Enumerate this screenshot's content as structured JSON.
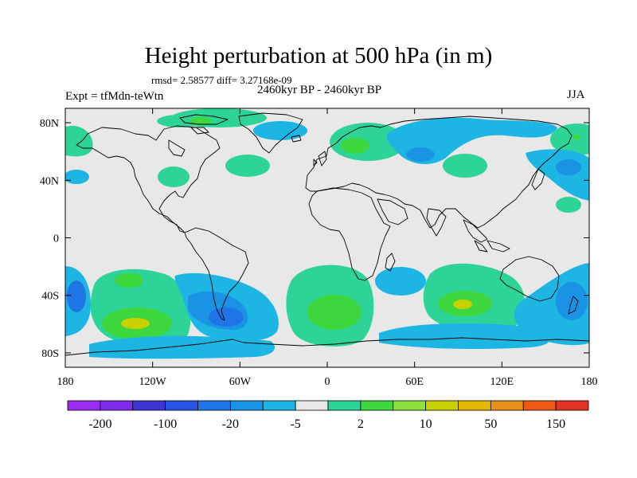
{
  "title": "Height perturbation at 500 hPa (in m)",
  "stats": "rmsd= 2.58577 diff= 3.27168e-09",
  "left_label": "Expt = tfMdn-teWtn",
  "center_label": "2460kyr BP - 2460kyr BP",
  "right_label": "JJA",
  "map": {
    "lon_range": [
      -180,
      180
    ],
    "lat_range": [
      -90,
      90
    ],
    "lon_ticks": [
      {
        "value": -180,
        "label": "180"
      },
      {
        "value": -120,
        "label": "120W"
      },
      {
        "value": -60,
        "label": "60W"
      },
      {
        "value": 0,
        "label": "0"
      },
      {
        "value": 60,
        "label": "60E"
      },
      {
        "value": 120,
        "label": "120E"
      },
      {
        "value": 180,
        "label": "180"
      }
    ],
    "lat_ticks": [
      {
        "value": 80,
        "label": "80N"
      },
      {
        "value": 40,
        "label": "40N"
      },
      {
        "value": 0,
        "label": "0"
      },
      {
        "value": -40,
        "label": "40S"
      },
      {
        "value": -80,
        "label": "80S"
      }
    ],
    "background_color": "#e8e8e8",
    "coastline_color": "#000000"
  },
  "colorbar": {
    "colors": [
      "#9a2cf0",
      "#7d2cec",
      "#3c35d2",
      "#2654e4",
      "#1f74e6",
      "#1a93e4",
      "#1db6e4",
      "#e8e8e8",
      "#2ed398",
      "#3ed83e",
      "#8ee03e",
      "#c8d000",
      "#e4b800",
      "#e8901c",
      "#ea5a12",
      "#e23222"
    ],
    "labels": [
      {
        "boundary": 1,
        "label": "-200"
      },
      {
        "boundary": 3,
        "label": "-100"
      },
      {
        "boundary": 5,
        "label": "-20"
      },
      {
        "boundary": 7,
        "label": "-5"
      },
      {
        "boundary": 9,
        "label": "2"
      },
      {
        "boundary": 11,
        "label": "10"
      },
      {
        "boundary": 13,
        "label": "50"
      },
      {
        "boundary": 15,
        "label": "150"
      }
    ]
  }
}
